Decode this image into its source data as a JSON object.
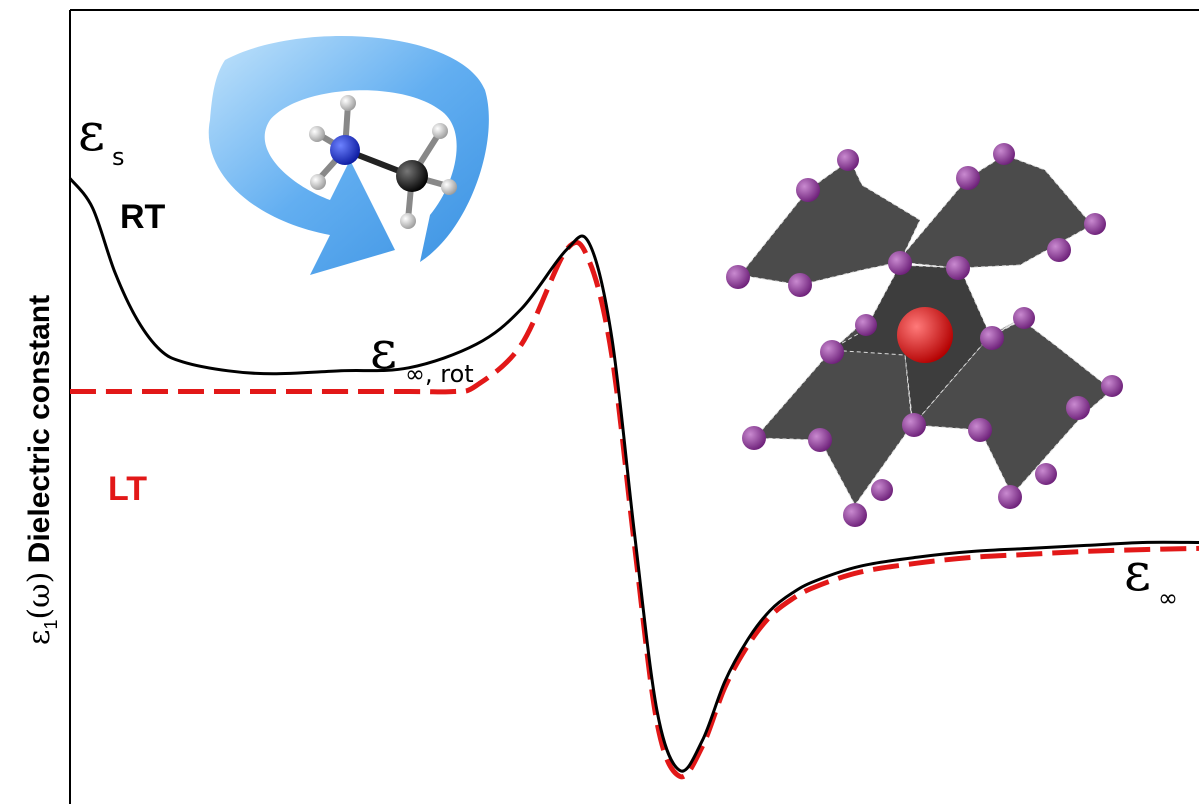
{
  "chart_data": {
    "type": "line",
    "title": "",
    "xlabel": "",
    "ylabel": {
      "symbol": "ε",
      "subscript": "1",
      "argument": "(ω)",
      "text": "Dielectric constant"
    },
    "grid": false,
    "ticks": false,
    "legend": "none",
    "series": [
      {
        "name": "RT",
        "color": "#000000",
        "style": "solid",
        "x": [
          0.0,
          0.02,
          0.04,
          0.06,
          0.08,
          0.1,
          0.14,
          0.18,
          0.24,
          0.3,
          0.36,
          0.4,
          0.44,
          0.46,
          0.48,
          0.5,
          0.52,
          0.54,
          0.56,
          0.58,
          0.6,
          0.62,
          0.64,
          0.66,
          0.7,
          0.75,
          0.8,
          0.85,
          0.9,
          0.95,
          1.0
        ],
        "values": [
          0.9,
          0.85,
          0.74,
          0.66,
          0.61,
          0.59,
          0.575,
          0.57,
          0.575,
          0.58,
          0.62,
          0.68,
          0.78,
          0.79,
          0.63,
          0.3,
          0.0,
          -0.1,
          -0.05,
          0.05,
          0.12,
          0.17,
          0.2,
          0.22,
          0.245,
          0.26,
          0.27,
          0.275,
          0.28,
          0.285,
          0.285
        ]
      },
      {
        "name": "LT",
        "color": "#e21818",
        "style": "dashed",
        "x": [
          0.0,
          0.1,
          0.2,
          0.3,
          0.34,
          0.36,
          0.4,
          0.44,
          0.46,
          0.48,
          0.5,
          0.52,
          0.54,
          0.56,
          0.58,
          0.6,
          0.62,
          0.64,
          0.66,
          0.7,
          0.75,
          0.8,
          0.85,
          0.9,
          0.95,
          1.0
        ],
        "values": [
          0.54,
          0.54,
          0.54,
          0.54,
          0.54,
          0.55,
          0.62,
          0.78,
          0.76,
          0.6,
          0.28,
          -0.02,
          -0.11,
          -0.06,
          0.04,
          0.11,
          0.16,
          0.19,
          0.21,
          0.235,
          0.25,
          0.26,
          0.265,
          0.27,
          0.273,
          0.275
        ]
      }
    ],
    "ylim": [
      -0.15,
      1.1
    ],
    "xlim": [
      0,
      1
    ],
    "annotations": {
      "eps_s": {
        "symbol": "ε",
        "sub": "s"
      },
      "eps_rot": {
        "symbol": "ε",
        "sub": "∞, rot"
      },
      "eps_inf": {
        "symbol": "ε",
        "sub": "∞"
      },
      "rt_label": "RT",
      "lt_label": "LT"
    },
    "insets": [
      "rotating-molecule-illustration",
      "perovskite-lattice-illustration"
    ]
  },
  "colors": {
    "rt": "#000000",
    "lt": "#e21818",
    "arrow": "#4aa0e6",
    "nitrogen": "#1c2fd6",
    "carbon": "#111111",
    "hydrogen": "#e8e8e8",
    "iodine": "#7d2a86",
    "cation": "#e01010",
    "octahedron": "#4a4a4a"
  }
}
